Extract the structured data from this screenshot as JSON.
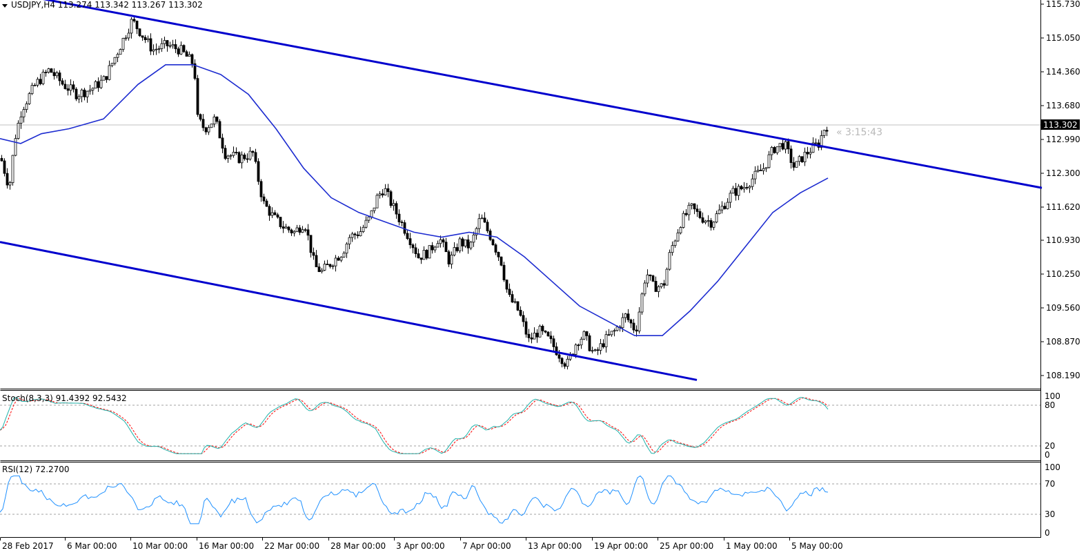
{
  "header": {
    "text": "USDJPY,H4  113.274 113.342 113.267 113.302"
  },
  "price_axis": {
    "ticks": [
      "115.730",
      "115.050",
      "114.360",
      "113.680",
      "112.990",
      "112.300",
      "111.620",
      "110.930",
      "110.250",
      "109.560",
      "108.870",
      "108.190"
    ],
    "current": "113.302"
  },
  "countdown": "« 3:15:43",
  "time_axis": [
    "28 Feb 2017",
    "6 Mar 00:00",
    "10 Mar 00:00",
    "16 Mar 00:00",
    "22 Mar 00:00",
    "28 Mar 00:00",
    "3 Apr 00:00",
    "7 Apr 00:00",
    "13 Apr 00:00",
    "19 Apr 00:00",
    "25 Apr 00:00",
    "1 May 00:00",
    "5 May 00:00"
  ],
  "stoch": {
    "label": "Stoch(8,3,3) 91.4392 92.5432",
    "ticks": [
      "100",
      "80",
      "20",
      "0"
    ]
  },
  "rsi": {
    "label": "RSI(12) 72.2700",
    "ticks": [
      "100",
      "70",
      "30",
      "0"
    ]
  },
  "colors": {
    "channel": "#0000cd",
    "ma": "#1c2bd0",
    "bull": "#ffffff",
    "bear": "#000000",
    "stoch_main": "#20b2aa",
    "stoch_signal": "#ff0000",
    "rsi": "#1e90ff"
  },
  "chart_data": {
    "type": "candlestick",
    "symbol": "USDJPY",
    "timeframe": "H4",
    "ylim": [
      108.0,
      115.9
    ],
    "ohlc_last": {
      "open": 113.274,
      "high": 113.342,
      "low": 113.267,
      "close": 113.302
    },
    "close_path": [
      [
        0,
        112.6
      ],
      [
        12,
        112.0
      ],
      [
        20,
        113.0
      ],
      [
        30,
        113.6
      ],
      [
        50,
        114.1
      ],
      [
        70,
        114.4
      ],
      [
        90,
        114.1
      ],
      [
        110,
        113.9
      ],
      [
        130,
        114.0
      ],
      [
        150,
        114.2
      ],
      [
        170,
        114.8
      ],
      [
        190,
        115.4
      ],
      [
        205,
        115.1
      ],
      [
        220,
        114.8
      ],
      [
        240,
        114.9
      ],
      [
        260,
        114.8
      ],
      [
        280,
        114.5
      ],
      [
        285,
        113.4
      ],
      [
        295,
        113.2
      ],
      [
        310,
        113.4
      ],
      [
        325,
        112.7
      ],
      [
        345,
        112.6
      ],
      [
        365,
        112.7
      ],
      [
        380,
        111.7
      ],
      [
        395,
        111.4
      ],
      [
        410,
        111.2
      ],
      [
        425,
        111.1
      ],
      [
        440,
        111.3
      ],
      [
        455,
        110.4
      ],
      [
        465,
        110.3
      ],
      [
        480,
        110.5
      ],
      [
        495,
        110.7
      ],
      [
        505,
        111.0
      ],
      [
        520,
        111.1
      ],
      [
        535,
        111.4
      ],
      [
        545,
        111.8
      ],
      [
        555,
        112.0
      ],
      [
        565,
        111.7
      ],
      [
        580,
        111.3
      ],
      [
        595,
        110.9
      ],
      [
        605,
        110.6
      ],
      [
        620,
        110.7
      ],
      [
        635,
        111.0
      ],
      [
        650,
        110.5
      ],
      [
        665,
        110.9
      ],
      [
        680,
        110.8
      ],
      [
        695,
        111.4
      ],
      [
        710,
        111.0
      ],
      [
        725,
        110.5
      ],
      [
        735,
        109.8
      ],
      [
        750,
        109.5
      ],
      [
        765,
        108.9
      ],
      [
        780,
        109.1
      ],
      [
        795,
        108.9
      ],
      [
        810,
        108.6
      ],
      [
        820,
        108.4
      ],
      [
        835,
        108.9
      ],
      [
        845,
        109.0
      ],
      [
        860,
        108.6
      ],
      [
        875,
        108.9
      ],
      [
        890,
        109.1
      ],
      [
        905,
        109.4
      ],
      [
        920,
        109.1
      ],
      [
        935,
        110.3
      ],
      [
        945,
        110.0
      ],
      [
        960,
        110.0
      ],
      [
        970,
        110.7
      ],
      [
        985,
        111.3
      ],
      [
        1000,
        111.6
      ],
      [
        1015,
        111.4
      ],
      [
        1030,
        111.3
      ],
      [
        1045,
        111.6
      ],
      [
        1060,
        111.9
      ],
      [
        1075,
        112.0
      ],
      [
        1090,
        112.2
      ],
      [
        1105,
        112.4
      ],
      [
        1120,
        112.8
      ],
      [
        1135,
        112.9
      ],
      [
        1150,
        112.4
      ],
      [
        1160,
        112.6
      ],
      [
        1175,
        112.8
      ],
      [
        1185,
        112.9
      ],
      [
        1193,
        113.2
      ],
      [
        1200,
        113.3
      ]
    ],
    "ma_path": [
      [
        0,
        113.0
      ],
      [
        30,
        112.9
      ],
      [
        60,
        113.1
      ],
      [
        100,
        113.2
      ],
      [
        150,
        113.4
      ],
      [
        200,
        114.1
      ],
      [
        240,
        114.5
      ],
      [
        280,
        114.5
      ],
      [
        320,
        114.3
      ],
      [
        360,
        113.9
      ],
      [
        400,
        113.2
      ],
      [
        440,
        112.4
      ],
      [
        480,
        111.8
      ],
      [
        520,
        111.5
      ],
      [
        560,
        111.3
      ],
      [
        600,
        111.1
      ],
      [
        640,
        111.0
      ],
      [
        680,
        111.1
      ],
      [
        720,
        111.0
      ],
      [
        760,
        110.6
      ],
      [
        800,
        110.1
      ],
      [
        840,
        109.6
      ],
      [
        880,
        109.3
      ],
      [
        920,
        109.0
      ],
      [
        960,
        109.0
      ],
      [
        1000,
        109.5
      ],
      [
        1040,
        110.1
      ],
      [
        1080,
        110.8
      ],
      [
        1120,
        111.5
      ],
      [
        1160,
        111.9
      ],
      [
        1200,
        112.2
      ]
    ],
    "channel_lines": [
      {
        "name": "upper",
        "from": [
          0,
          116.0
        ],
        "to": [
          1510,
          112.0
        ]
      },
      {
        "name": "lower",
        "from": [
          0,
          110.9
        ],
        "to": [
          1010,
          108.1
        ]
      }
    ],
    "indicators": [
      {
        "name": "Stoch(8,3,3)",
        "main": 91.4392,
        "signal": 92.5432,
        "levels": [
          20,
          80
        ],
        "ylim": [
          0,
          100
        ]
      },
      {
        "name": "RSI(12)",
        "value": 72.27,
        "levels": [
          30,
          70
        ],
        "ylim": [
          0,
          100
        ]
      }
    ]
  }
}
